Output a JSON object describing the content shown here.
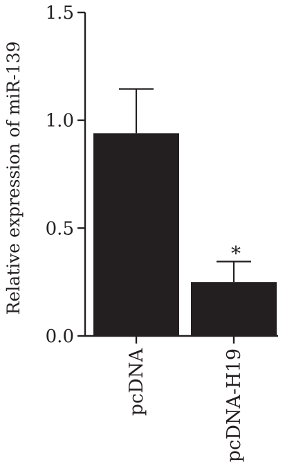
{
  "chart_data": {
    "type": "bar",
    "categories": [
      "pcDNA",
      "pcDNA-H19"
    ],
    "values": [
      0.94,
      0.25
    ],
    "error_upper": [
      1.145,
      0.345
    ],
    "annotations": [
      "",
      "*"
    ],
    "ylabel": "Relative expression of miR-139",
    "xlabel": "",
    "ylim": [
      0,
      1.5
    ],
    "yticks": [
      0.0,
      0.5,
      1.0,
      1.5
    ],
    "ytick_labels": [
      "0.0",
      "0.5",
      "1.0",
      "1.5"
    ],
    "grid": false,
    "legend": "none",
    "bar_color": "#231f20",
    "axis_color": "#231f20"
  }
}
